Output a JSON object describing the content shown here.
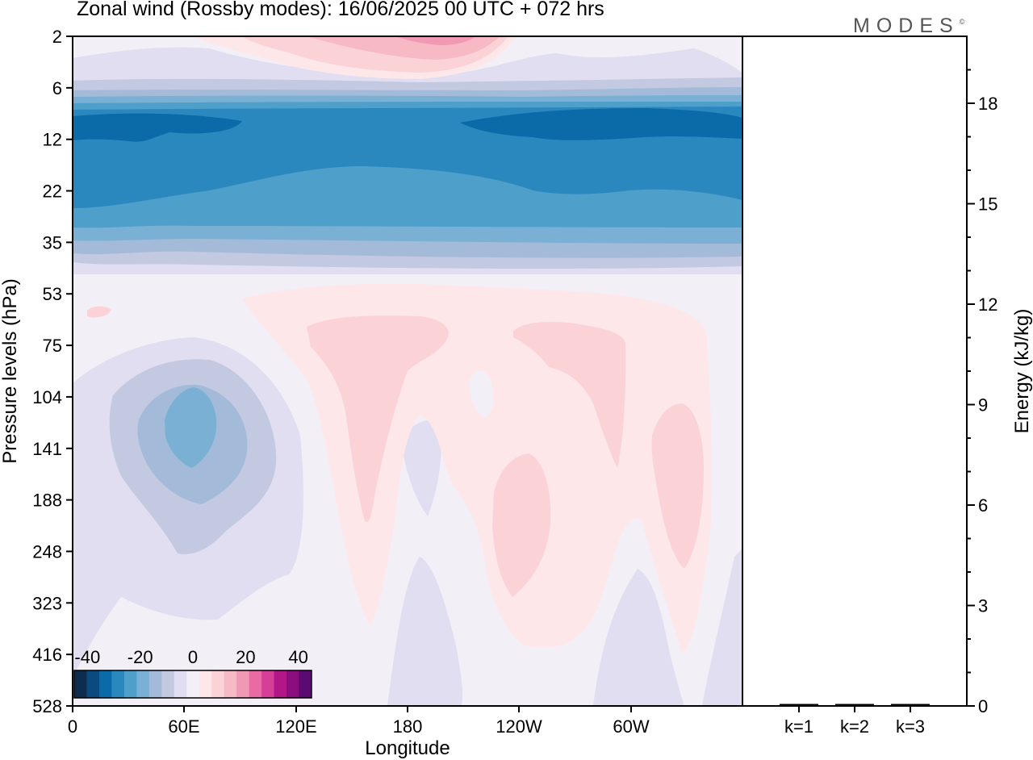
{
  "header": {
    "title": "Zonal wind (Rossby modes):  16/06/2025  00 UTC  + 072 hrs",
    "logo": "MODES",
    "logo_mark": "©"
  },
  "chart_data": [
    {
      "type": "heatmap",
      "title": "Zonal wind (Rossby modes):  16/06/2025  00 UTC  + 072 hrs",
      "xlabel": "Longitude",
      "ylabel": "Pressure levels (hPa)",
      "x_ticks": [
        "0",
        "60E",
        "120E",
        "180",
        "120W",
        "60W"
      ],
      "x_range_degrees_east": [
        0,
        360
      ],
      "y_levels_hPa": [
        "2",
        "6",
        "12",
        "22",
        "35",
        "53",
        "75",
        "104",
        "141",
        "188",
        "248",
        "323",
        "416",
        "528"
      ],
      "y_axis_inverted": true,
      "colorbar": {
        "tick_labels": [
          "-40",
          "-20",
          "0",
          "20",
          "40"
        ],
        "range": [
          -45,
          45
        ],
        "step": 5,
        "colors": [
          "#0d2d4f",
          "#0a4a7f",
          "#0b6aa8",
          "#2b88bf",
          "#4f9fcb",
          "#7ab0d4",
          "#a3bbd8",
          "#c3c9e0",
          "#e0def0",
          "#f3eff7",
          "#fde7e9",
          "#fbd3d6",
          "#f7b9c3",
          "#f198b4",
          "#ea6ba3",
          "#d63f97",
          "#b2178a",
          "#8b0e7f",
          "#5b0a72"
        ]
      },
      "field_description": "Easterly band (-15 to -30 m/s) at 6-35 hPa; weak westerly maximum (+15) near 2 hPa at 150E-120W; weak easterly (-10 to -15) centred at 60E, 141 hPa; weak westerlies (+5 to +10) at 160E, 120W, 70W, 40W in 75-323 hPa",
      "grid": false
    },
    {
      "type": "bar",
      "categories": [
        "k=1",
        "k=2",
        "k=3"
      ],
      "values": [
        0.02,
        0.01,
        0.005
      ],
      "ylabel": "Energy (kJ/kg)",
      "y_ticks": [
        "0",
        "3",
        "6",
        "9",
        "12",
        "15",
        "18"
      ],
      "ylim": [
        0,
        20
      ],
      "bar_color": "#000000"
    }
  ]
}
